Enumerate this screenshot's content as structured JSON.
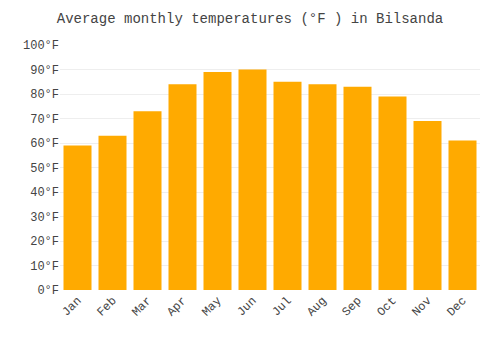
{
  "chart_data": {
    "type": "bar",
    "title": "Average monthly temperatures (°F ) in Bilsanda",
    "categories": [
      "Jan",
      "Feb",
      "Mar",
      "Apr",
      "May",
      "Jun",
      "Jul",
      "Aug",
      "Sep",
      "Oct",
      "Nov",
      "Dec"
    ],
    "values": [
      59,
      63,
      73,
      84,
      89,
      90,
      85,
      84,
      83,
      79,
      69,
      61
    ],
    "color": "#FFAA00",
    "ylim": [
      0,
      100
    ],
    "yticks": [
      {
        "value": 0,
        "label": "0°F"
      },
      {
        "value": 10,
        "label": "10°F"
      },
      {
        "value": 20,
        "label": "20°F"
      },
      {
        "value": 30,
        "label": "30°F"
      },
      {
        "value": 40,
        "label": "40°F"
      },
      {
        "value": 50,
        "label": "50°F"
      },
      {
        "value": 60,
        "label": "60°F"
      },
      {
        "value": 70,
        "label": "70°F"
      },
      {
        "value": 80,
        "label": "80°F"
      },
      {
        "value": 90,
        "label": "90°F"
      },
      {
        "value": 100,
        "label": "100°F"
      }
    ],
    "grid": true
  }
}
